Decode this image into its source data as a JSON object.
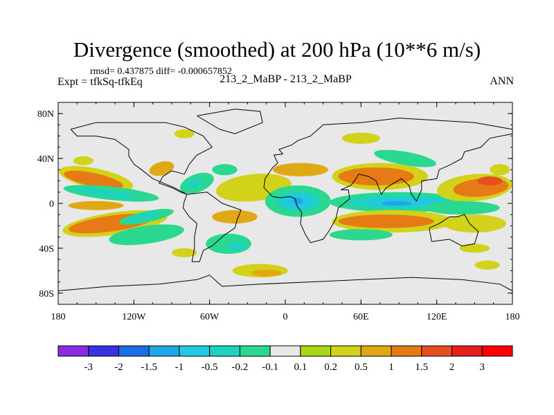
{
  "title": "Divergence (smoothed) at 200 hPa (10**6 m/s)",
  "stats_line": "rmsd= 0.437875 diff= -0.000657852",
  "left_label": "Expt = tfkSq-tfkEq",
  "center_label": "213_2_MaBP - 213_2_MaBP",
  "right_label": "ANN",
  "chart_data": {
    "type": "heatmap",
    "title": "Divergence (smoothed) at 200 hPa (10**6 m/s)",
    "xlabel": "",
    "ylabel": "",
    "xlim": [
      -180,
      180
    ],
    "ylim": [
      -90,
      90
    ],
    "x_ticks": [
      {
        "value": -180,
        "label": "180"
      },
      {
        "value": -120,
        "label": "120W"
      },
      {
        "value": -60,
        "label": "60W"
      },
      {
        "value": 0,
        "label": "0"
      },
      {
        "value": 60,
        "label": "60E"
      },
      {
        "value": 120,
        "label": "120E"
      },
      {
        "value": 180,
        "label": "180"
      }
    ],
    "y_ticks": [
      {
        "value": 80,
        "label": "80N"
      },
      {
        "value": 40,
        "label": "40N"
      },
      {
        "value": 0,
        "label": "0"
      },
      {
        "value": -40,
        "label": "40S"
      },
      {
        "value": -80,
        "label": "80S"
      }
    ],
    "colorbar": {
      "levels": [
        "-3",
        "-2",
        "-1.5",
        "-1",
        "-0.5",
        "-0.2",
        "-0.1",
        "0.1",
        "0.2",
        "0.5",
        "1",
        "1.5",
        "2",
        "3"
      ],
      "colors": [
        "#8a2be2",
        "#3a32e2",
        "#1a6ee6",
        "#1ea6e6",
        "#22c8e0",
        "#1ed2c0",
        "#2ad890",
        "#e8e8e8",
        "#a6d816",
        "#d2d21a",
        "#e0a814",
        "#e67a14",
        "#e6501e",
        "#e61e1e",
        "#ff0000"
      ]
    },
    "features": [
      {
        "name": "North Pacific positive band",
        "lon": -152,
        "lat": 20,
        "value": 1.0
      },
      {
        "name": "Central Pacific negative band",
        "lon": -140,
        "lat": 10,
        "value": -0.5
      },
      {
        "name": "Equatorial Pacific positive",
        "lon": -145,
        "lat": -2,
        "value": 0.5
      },
      {
        "name": "South Pacific positive",
        "lon": -140,
        "lat": -18,
        "value": 1.0
      },
      {
        "name": "South Pacific negative",
        "lon": -110,
        "lat": -12,
        "value": -0.5
      },
      {
        "name": "North America positive",
        "lon": -100,
        "lat": 30,
        "value": 0.5
      },
      {
        "name": "Atlantic tropics negative",
        "lon": -60,
        "lat": 5,
        "value": -0.5
      },
      {
        "name": "Atlantic positive",
        "lon": -25,
        "lat": 14,
        "value": 1.0
      },
      {
        "name": "Africa negative core",
        "lon": 11,
        "lat": 2,
        "value": -1.5
      },
      {
        "name": "Indian Ocean negative core",
        "lon": 95,
        "lat": 0,
        "value": -1.5
      },
      {
        "name": "South Indian Ocean positive",
        "lon": 85,
        "lat": -14,
        "value": 1.0
      },
      {
        "name": "Eurasia positive",
        "lon": 75,
        "lat": 22,
        "value": 1.0
      },
      {
        "name": "NW Pacific positive",
        "lon": 160,
        "lat": 16,
        "value": 1.0
      },
      {
        "name": "South America negative",
        "lon": -40,
        "lat": -36,
        "value": -0.2
      },
      {
        "name": "Southern Ocean positive",
        "lon": -20,
        "lat": -62,
        "value": 0.5
      }
    ]
  }
}
